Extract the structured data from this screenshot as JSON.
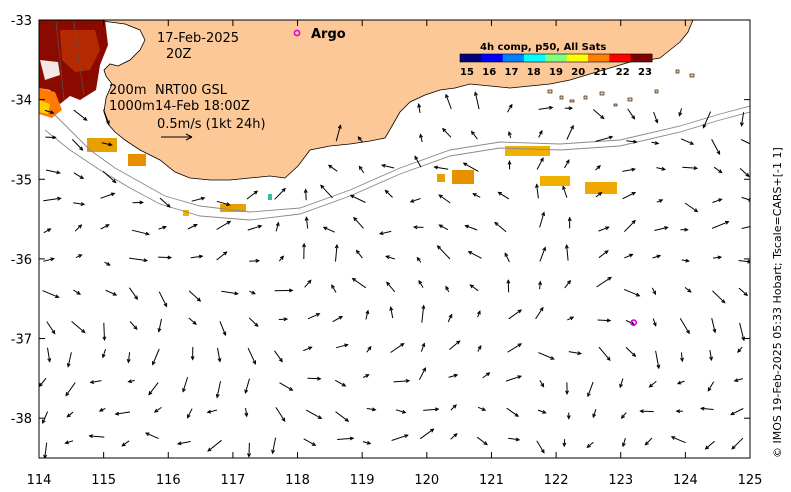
{
  "map": {
    "x_axis": {
      "label_values": [
        "114",
        "115",
        "116",
        "117",
        "118",
        "119",
        "120",
        "121",
        "122",
        "123",
        "124",
        "125"
      ],
      "min": 114,
      "max": 125
    },
    "y_axis": {
      "label_values": [
        "-33",
        "-34",
        "-35",
        "-36",
        "-37",
        "-38"
      ],
      "min": -38.5,
      "max": -33
    },
    "date_line1": "17-Feb-2025",
    "date_line2": "20Z",
    "depth_200": "200m",
    "depth_1000": "1000m",
    "nrt_label": "NRT00 GSL",
    "time_label": "14-Feb 18:00Z",
    "scale_label": "0.5m/s (1kt 24h)",
    "argo_label": "Argo",
    "argo_color": "#e000e0",
    "land_color": "#fdc898",
    "credit": "© IMOS 19-Feb-2025 05:33 Hobart; Tscale=CARS+[-1 1]",
    "argo_float": {
      "lon": 123.2,
      "lat": -36.8
    }
  },
  "colorbar": {
    "title": "4h comp, p50, All Sats",
    "tick_labels": [
      "15",
      "16",
      "17",
      "18",
      "19",
      "20",
      "21",
      "22",
      "23"
    ],
    "colors": [
      "#00007f",
      "#0000ff",
      "#0080ff",
      "#00ffff",
      "#80ff80",
      "#ffff00",
      "#ff8000",
      "#ff0000",
      "#7f0000"
    ]
  }
}
